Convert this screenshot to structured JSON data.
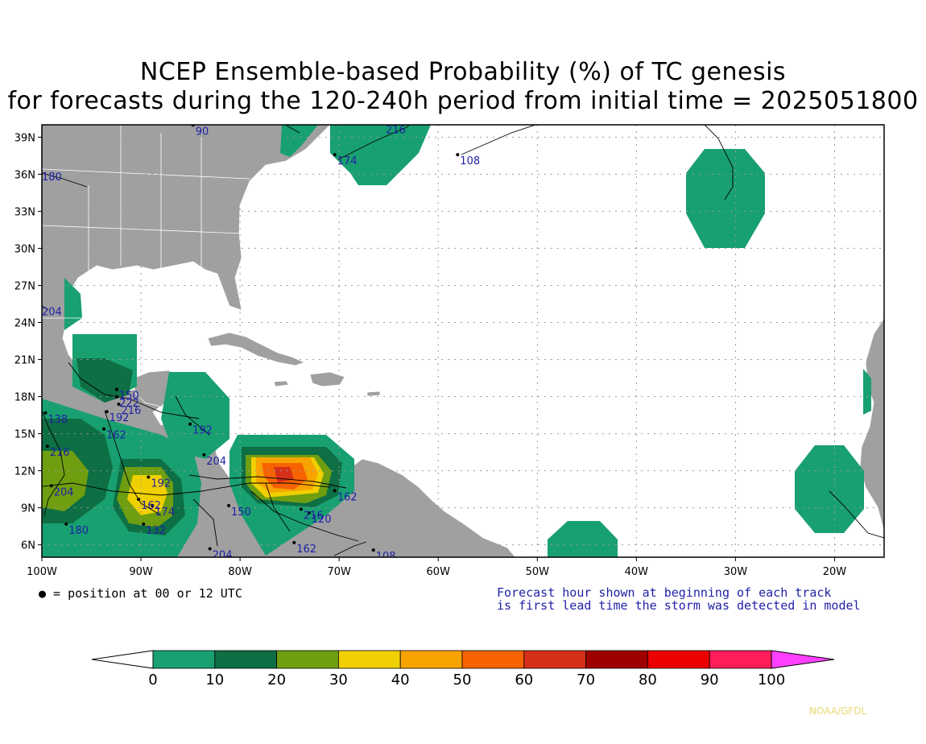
{
  "title": {
    "line1": "NCEP Ensemble-based Probability (%) of TC genesis",
    "line2": "for forecasts during the 120-240h period from initial time = 2025051800"
  },
  "map": {
    "x_labels": [
      "100W",
      "90W",
      "80W",
      "70W",
      "60W",
      "50W",
      "40W",
      "30W",
      "20W"
    ],
    "y_labels": [
      "39N",
      "36N",
      "33N",
      "30N",
      "27N",
      "24N",
      "21N",
      "18N",
      "15N",
      "12N",
      "9N",
      "6N"
    ],
    "lon_range": [
      -100,
      -15
    ],
    "lat_range": [
      5,
      40
    ],
    "colors": {
      "ocean": "#ffffff",
      "land": "#a0a0a0",
      "grid": "#9a9a9a"
    }
  },
  "track_labels": [
    {
      "text": "90",
      "lon": -84.5,
      "lat": 39.2
    },
    {
      "text": "216",
      "lon": -65.3,
      "lat": 39.3
    },
    {
      "text": "174",
      "lon": -70.2,
      "lat": 36.8
    },
    {
      "text": "108",
      "lon": -57.8,
      "lat": 36.8
    },
    {
      "text": "180",
      "lon": -100,
      "lat": 35.5
    },
    {
      "text": "204",
      "lon": -100,
      "lat": 24.6
    },
    {
      "text": "150",
      "lon": -92.2,
      "lat": 17.8
    },
    {
      "text": "222",
      "lon": -92.2,
      "lat": 17.2
    },
    {
      "text": "216",
      "lon": -92.0,
      "lat": 16.6
    },
    {
      "text": "192",
      "lon": -93.2,
      "lat": 16.0
    },
    {
      "text": "192",
      "lon": -84.8,
      "lat": 15.0
    },
    {
      "text": "138",
      "lon": -99.4,
      "lat": 15.9
    },
    {
      "text": "162",
      "lon": -93.5,
      "lat": 14.6
    },
    {
      "text": "216",
      "lon": -99.2,
      "lat": 13.2
    },
    {
      "text": "204",
      "lon": -83.4,
      "lat": 12.5
    },
    {
      "text": "150",
      "lon": -80.9,
      "lat": 8.4
    },
    {
      "text": "204",
      "lon": -98.8,
      "lat": 10.0
    },
    {
      "text": "192",
      "lon": -89.0,
      "lat": 10.7
    },
    {
      "text": "162",
      "lon": -90.0,
      "lat": 8.9
    },
    {
      "text": "174",
      "lon": -88.6,
      "lat": 8.4
    },
    {
      "text": "180",
      "lon": -97.3,
      "lat": 6.9
    },
    {
      "text": "132",
      "lon": -89.5,
      "lat": 6.9
    },
    {
      "text": "204",
      "lon": -82.8,
      "lat": 4.9
    },
    {
      "text": "162",
      "lon": -74.3,
      "lat": 5.4
    },
    {
      "text": "216",
      "lon": -73.6,
      "lat": 8.1
    },
    {
      "text": "120",
      "lon": -72.8,
      "lat": 7.8
    },
    {
      "text": "162",
      "lon": -70.2,
      "lat": 9.6
    },
    {
      "text": "108",
      "lon": -66.3,
      "lat": 4.8
    }
  ],
  "legend_note": {
    "left": "● = position at 00 or 12 UTC",
    "right_line1": "Forecast hour shown at beginning of each track",
    "right_line2": "is first lead time the storm was detected in model"
  },
  "colorbar": {
    "ticks": [
      "0",
      "10",
      "20",
      "30",
      "40",
      "50",
      "60",
      "70",
      "80",
      "90",
      "100"
    ],
    "colors": [
      "#18a070",
      "#0e6e44",
      "#6f9e10",
      "#f0d000",
      "#f8a400",
      "#f76300",
      "#d63018",
      "#9e0000",
      "#ec0000",
      "#ff1e5a"
    ],
    "under_color": "#ffffff",
    "over_color": "#ff40ff"
  },
  "credit": "NOAA/GFDL"
}
